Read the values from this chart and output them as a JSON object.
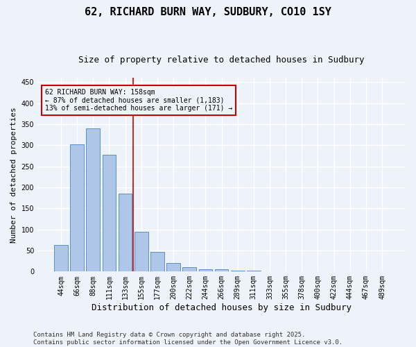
{
  "title": "62, RICHARD BURN WAY, SUDBURY, CO10 1SY",
  "subtitle": "Size of property relative to detached houses in Sudbury",
  "xlabel": "Distribution of detached houses by size in Sudbury",
  "ylabel": "Number of detached properties",
  "categories": [
    "44sqm",
    "66sqm",
    "88sqm",
    "111sqm",
    "133sqm",
    "155sqm",
    "177sqm",
    "200sqm",
    "222sqm",
    "244sqm",
    "266sqm",
    "289sqm",
    "311sqm",
    "333sqm",
    "355sqm",
    "378sqm",
    "400sqm",
    "422sqm",
    "444sqm",
    "467sqm",
    "489sqm"
  ],
  "values": [
    63,
    302,
    340,
    278,
    185,
    94,
    46,
    21,
    11,
    6,
    5,
    3,
    2,
    1,
    1,
    0,
    1,
    0,
    0,
    0,
    1
  ],
  "bar_color": "#aec6e8",
  "bar_edge_color": "#5b8fc9",
  "bar_width": 0.85,
  "vline_pos": 4.5,
  "vline_color": "#cc0000",
  "annotation_line1": "62 RICHARD BURN WAY: 158sqm",
  "annotation_line2": "← 87% of detached houses are smaller (1,183)",
  "annotation_line3": "13% of semi-detached houses are larger (171) →",
  "annotation_box_color": "#cc0000",
  "ylim": [
    0,
    460
  ],
  "yticks": [
    0,
    50,
    100,
    150,
    200,
    250,
    300,
    350,
    400,
    450
  ],
  "bg_color": "#eef2f9",
  "grid_color": "#ffffff",
  "footer": "Contains HM Land Registry data © Crown copyright and database right 2025.\nContains public sector information licensed under the Open Government Licence v3.0.",
  "title_fontsize": 11,
  "subtitle_fontsize": 9,
  "xlabel_fontsize": 9,
  "ylabel_fontsize": 8,
  "tick_fontsize": 7,
  "annotation_fontsize": 7,
  "footer_fontsize": 6.5
}
